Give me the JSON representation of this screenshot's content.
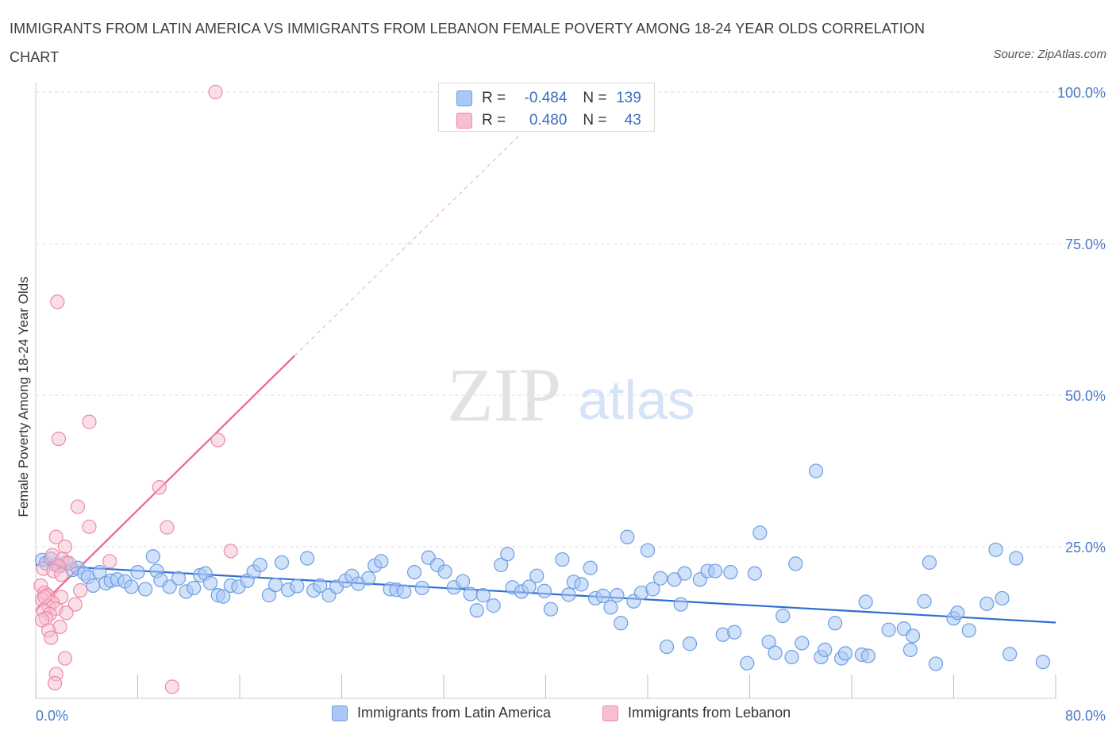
{
  "title": "IMMIGRANTS FROM LATIN AMERICA VS IMMIGRANTS FROM LEBANON FEMALE POVERTY AMONG 18-24 YEAR OLDS CORRELATION CHART",
  "source": "Source: ZipAtlas.com",
  "watermark": {
    "zip": "ZIP",
    "atlas": "atlas"
  },
  "colors": {
    "blue_fill": "#aac8f5",
    "blue_stroke": "#6f9de0",
    "blue_line": "#2e6fd1",
    "pink_fill": "#f8bfd0",
    "pink_stroke": "#ec8aa8",
    "pink_line": "#e8678f",
    "axis_label": "#4a7ac8",
    "grid": "#dddddd"
  },
  "stats": [
    {
      "r_label": "R =",
      "r_value": "-0.484",
      "n_label": "N =",
      "n_value": "139",
      "series": "latin_america"
    },
    {
      "r_label": "R =",
      "r_value": "0.480",
      "n_label": "N =",
      "n_value": "43",
      "series": "lebanon"
    }
  ],
  "legend": [
    {
      "label": "Immigrants from Latin America",
      "series": "latin_america"
    },
    {
      "label": "Immigrants from Lebanon",
      "series": "lebanon"
    }
  ],
  "chart_data": {
    "type": "scatter",
    "xlabel": "",
    "ylabel": "Female Poverty Among 18-24 Year Olds",
    "xlim": [
      0,
      80
    ],
    "ylim": [
      0,
      100
    ],
    "x_tick_labels": [
      {
        "value": 0,
        "label": "0.0%"
      },
      {
        "value": 80,
        "label": "80.0%"
      }
    ],
    "y_tick_labels": [
      {
        "value": 25,
        "label": "25.0%"
      },
      {
        "value": 50,
        "label": "50.0%"
      },
      {
        "value": 75,
        "label": "75.0%"
      },
      {
        "value": 100,
        "label": "100.0%"
      }
    ],
    "grid": true,
    "legend_position": "bottom",
    "series": [
      {
        "name": "Immigrants from Latin America",
        "key": "latin_america",
        "trend": {
          "x0": 0,
          "y0": 22.0,
          "x1": 80,
          "y1": 12.5
        },
        "points": [
          [
            0.5,
            22.8
          ],
          [
            0.8,
            22.3
          ],
          [
            1.2,
            23.0
          ],
          [
            1.6,
            22.0
          ],
          [
            1.9,
            21.8
          ],
          [
            2.4,
            22.4
          ],
          [
            2.9,
            21.2
          ],
          [
            3.3,
            21.5
          ],
          [
            3.8,
            20.6
          ],
          [
            4.1,
            20.0
          ],
          [
            4.5,
            18.6
          ],
          [
            5.0,
            20.8
          ],
          [
            5.5,
            19.0
          ],
          [
            5.9,
            19.4
          ],
          [
            6.4,
            19.6
          ],
          [
            7.0,
            19.3
          ],
          [
            7.5,
            18.4
          ],
          [
            8.0,
            20.8
          ],
          [
            8.6,
            18.0
          ],
          [
            9.2,
            23.4
          ],
          [
            9.5,
            21.0
          ],
          [
            9.8,
            19.5
          ],
          [
            10.5,
            18.4
          ],
          [
            11.2,
            19.8
          ],
          [
            11.8,
            17.6
          ],
          [
            12.4,
            18.2
          ],
          [
            12.9,
            20.3
          ],
          [
            13.3,
            20.6
          ],
          [
            13.7,
            19.0
          ],
          [
            14.3,
            17.0
          ],
          [
            14.7,
            16.8
          ],
          [
            15.3,
            18.6
          ],
          [
            15.9,
            18.4
          ],
          [
            16.6,
            19.4
          ],
          [
            17.1,
            20.9
          ],
          [
            17.6,
            22.0
          ],
          [
            18.3,
            17.0
          ],
          [
            18.8,
            18.7
          ],
          [
            19.3,
            22.4
          ],
          [
            19.8,
            17.9
          ],
          [
            20.5,
            18.5
          ],
          [
            21.3,
            23.1
          ],
          [
            21.8,
            17.8
          ],
          [
            22.3,
            18.6
          ],
          [
            23.0,
            17.0
          ],
          [
            23.6,
            18.4
          ],
          [
            24.3,
            19.4
          ],
          [
            24.8,
            20.2
          ],
          [
            25.3,
            18.9
          ],
          [
            26.1,
            19.8
          ],
          [
            26.6,
            21.9
          ],
          [
            27.1,
            22.6
          ],
          [
            27.8,
            18.0
          ],
          [
            28.3,
            17.9
          ],
          [
            28.9,
            17.6
          ],
          [
            29.7,
            20.8
          ],
          [
            30.3,
            18.2
          ],
          [
            30.8,
            23.2
          ],
          [
            31.5,
            22.0
          ],
          [
            32.1,
            20.9
          ],
          [
            32.8,
            18.3
          ],
          [
            33.5,
            19.3
          ],
          [
            34.1,
            17.2
          ],
          [
            34.6,
            14.5
          ],
          [
            35.1,
            17.0
          ],
          [
            35.9,
            15.3
          ],
          [
            36.5,
            22.0
          ],
          [
            37.0,
            23.8
          ],
          [
            37.4,
            18.3
          ],
          [
            38.1,
            17.6
          ],
          [
            38.7,
            18.4
          ],
          [
            39.3,
            20.2
          ],
          [
            39.9,
            17.7
          ],
          [
            40.4,
            14.7
          ],
          [
            41.3,
            22.9
          ],
          [
            41.8,
            17.1
          ],
          [
            42.2,
            19.2
          ],
          [
            42.8,
            18.8
          ],
          [
            43.5,
            21.5
          ],
          [
            43.9,
            16.5
          ],
          [
            44.5,
            16.9
          ],
          [
            45.1,
            15.0
          ],
          [
            45.6,
            17.0
          ],
          [
            45.9,
            12.4
          ],
          [
            46.4,
            26.6
          ],
          [
            46.9,
            16.0
          ],
          [
            47.5,
            17.4
          ],
          [
            48.0,
            24.4
          ],
          [
            48.4,
            18.0
          ],
          [
            49.0,
            19.8
          ],
          [
            49.5,
            8.5
          ],
          [
            50.1,
            19.6
          ],
          [
            50.6,
            15.5
          ],
          [
            50.9,
            20.6
          ],
          [
            51.3,
            9.0
          ],
          [
            52.1,
            19.6
          ],
          [
            52.7,
            21.0
          ],
          [
            53.3,
            21.0
          ],
          [
            53.9,
            10.5
          ],
          [
            54.5,
            20.8
          ],
          [
            54.8,
            10.9
          ],
          [
            55.8,
            5.8
          ],
          [
            56.4,
            20.6
          ],
          [
            56.8,
            27.3
          ],
          [
            57.5,
            9.3
          ],
          [
            58.0,
            7.5
          ],
          [
            58.6,
            13.6
          ],
          [
            59.3,
            6.8
          ],
          [
            59.6,
            22.2
          ],
          [
            60.1,
            9.1
          ],
          [
            61.2,
            37.5
          ],
          [
            61.6,
            6.8
          ],
          [
            61.9,
            8.0
          ],
          [
            62.7,
            12.4
          ],
          [
            63.2,
            6.6
          ],
          [
            63.5,
            7.4
          ],
          [
            64.8,
            7.2
          ],
          [
            65.1,
            15.9
          ],
          [
            65.3,
            7.0
          ],
          [
            66.9,
            11.3
          ],
          [
            68.1,
            11.5
          ],
          [
            68.6,
            8.0
          ],
          [
            68.8,
            10.3
          ],
          [
            69.7,
            16.0
          ],
          [
            70.1,
            22.4
          ],
          [
            70.6,
            5.7
          ],
          [
            72.0,
            13.2
          ],
          [
            72.3,
            14.1
          ],
          [
            73.2,
            11.2
          ],
          [
            74.6,
            15.6
          ],
          [
            75.3,
            24.5
          ],
          [
            75.8,
            16.5
          ],
          [
            76.4,
            7.3
          ],
          [
            76.9,
            23.1
          ],
          [
            79.0,
            6.0
          ]
        ]
      },
      {
        "name": "Immigrants from Lebanon",
        "key": "lebanon",
        "trend": {
          "x0": 0,
          "y0": 14.5,
          "x1": 20.3,
          "y1": 56.5
        },
        "trend_dashed": {
          "x0": 20.3,
          "y0": 56.5,
          "x1": 38.0,
          "y1": 93.0
        },
        "points": [
          [
            14.1,
            100.0
          ],
          [
            1.7,
            65.4
          ],
          [
            4.2,
            45.6
          ],
          [
            1.8,
            42.8
          ],
          [
            14.3,
            42.6
          ],
          [
            9.7,
            34.8
          ],
          [
            3.3,
            31.6
          ],
          [
            10.3,
            28.2
          ],
          [
            4.2,
            28.3
          ],
          [
            1.6,
            26.6
          ],
          [
            2.3,
            25.0
          ],
          [
            15.3,
            24.3
          ],
          [
            1.3,
            23.6
          ],
          [
            2.1,
            23.0
          ],
          [
            5.8,
            22.6
          ],
          [
            2.6,
            22.3
          ],
          [
            1.8,
            21.8
          ],
          [
            0.6,
            21.4
          ],
          [
            1.4,
            21.0
          ],
          [
            2.0,
            20.4
          ],
          [
            0.4,
            18.6
          ],
          [
            3.5,
            17.8
          ],
          [
            0.7,
            17.4
          ],
          [
            2.0,
            16.7
          ],
          [
            0.9,
            17.0
          ],
          [
            0.5,
            16.3
          ],
          [
            1.3,
            15.8
          ],
          [
            3.1,
            15.5
          ],
          [
            1.0,
            15.2
          ],
          [
            1.6,
            14.8
          ],
          [
            0.6,
            14.5
          ],
          [
            2.4,
            14.1
          ],
          [
            1.1,
            13.9
          ],
          [
            0.8,
            13.2
          ],
          [
            0.5,
            12.9
          ],
          [
            1.9,
            11.8
          ],
          [
            1.0,
            11.2
          ],
          [
            1.2,
            10.0
          ],
          [
            2.3,
            6.6
          ],
          [
            1.6,
            4.0
          ],
          [
            1.5,
            2.5
          ],
          [
            10.7,
            1.9
          ],
          [
            0.7,
            16.7
          ]
        ]
      }
    ]
  }
}
